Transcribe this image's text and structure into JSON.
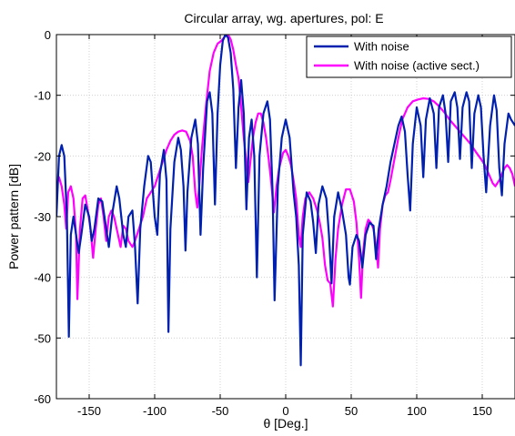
{
  "chart_data": {
    "type": "line",
    "title": "Circular array, wg. apertures, pol: E",
    "xlabel": "θ  [Deg.]",
    "ylabel": "Power pattern  [dB]",
    "xlim": [
      -175,
      175
    ],
    "ylim": [
      -60,
      0
    ],
    "xticks": [
      -150,
      -100,
      -50,
      0,
      50,
      100,
      150
    ],
    "yticks": [
      0,
      -10,
      -20,
      -30,
      -40,
      -50,
      -60
    ],
    "grid": true,
    "legend_position": "top-right",
    "series": [
      {
        "name": "With noise",
        "color": "#0020b0",
        "points": [
          [
            -175,
            -30
          ],
          [
            -173,
            -20
          ],
          [
            -171,
            -18.2
          ],
          [
            -169,
            -20
          ],
          [
            -167,
            -30
          ],
          [
            -165.5,
            -49.8
          ],
          [
            -164,
            -33
          ],
          [
            -162,
            -30
          ],
          [
            -160,
            -33
          ],
          [
            -158,
            -36
          ],
          [
            -156,
            -33
          ],
          [
            -153,
            -28
          ],
          [
            -150,
            -30
          ],
          [
            -148,
            -34
          ],
          [
            -146,
            -32
          ],
          [
            -143,
            -27
          ],
          [
            -140,
            -27.5
          ],
          [
            -137,
            -32
          ],
          [
            -135,
            -35
          ],
          [
            -132,
            -29
          ],
          [
            -129,
            -25
          ],
          [
            -127,
            -27
          ],
          [
            -124,
            -33
          ],
          [
            -122,
            -35
          ],
          [
            -120,
            -30
          ],
          [
            -117,
            -29
          ],
          [
            -115,
            -35
          ],
          [
            -113,
            -44.3
          ],
          [
            -111,
            -32
          ],
          [
            -108,
            -25
          ],
          [
            -105,
            -20
          ],
          [
            -103,
            -21
          ],
          [
            -100,
            -30
          ],
          [
            -98,
            -33
          ],
          [
            -96,
            -23
          ],
          [
            -93,
            -19
          ],
          [
            -91,
            -24
          ],
          [
            -89.5,
            -49
          ],
          [
            -88,
            -32
          ],
          [
            -85,
            -21
          ],
          [
            -82,
            -17
          ],
          [
            -80,
            -19
          ],
          [
            -78,
            -25
          ],
          [
            -76.5,
            -35.6
          ],
          [
            -75,
            -26
          ],
          [
            -72,
            -17
          ],
          [
            -69,
            -14
          ],
          [
            -67,
            -18
          ],
          [
            -65,
            -33
          ],
          [
            -63,
            -22
          ],
          [
            -60,
            -11
          ],
          [
            -58,
            -9.5
          ],
          [
            -56,
            -13
          ],
          [
            -54,
            -28
          ],
          [
            -52,
            -13
          ],
          [
            -50,
            -5
          ],
          [
            -48,
            -1
          ],
          [
            -46,
            0
          ],
          [
            -44,
            -0.5
          ],
          [
            -42,
            -3
          ],
          [
            -40,
            -9
          ],
          [
            -38,
            -22
          ],
          [
            -36,
            -12
          ],
          [
            -34,
            -7.5
          ],
          [
            -32,
            -13
          ],
          [
            -30,
            -28.8
          ],
          [
            -28,
            -17
          ],
          [
            -26,
            -14
          ],
          [
            -24,
            -20
          ],
          [
            -22,
            -40
          ],
          [
            -20,
            -20
          ],
          [
            -17,
            -13
          ],
          [
            -14,
            -11
          ],
          [
            -12,
            -14
          ],
          [
            -10,
            -26
          ],
          [
            -8.5,
            -43.8
          ],
          [
            -6,
            -25
          ],
          [
            -3,
            -17
          ],
          [
            0,
            -14
          ],
          [
            3,
            -17
          ],
          [
            6,
            -26
          ],
          [
            8,
            -30
          ],
          [
            10,
            -38
          ],
          [
            11.5,
            -54.5
          ],
          [
            13,
            -33
          ],
          [
            16,
            -26
          ],
          [
            19,
            -27.5
          ],
          [
            21,
            -31
          ],
          [
            23,
            -36
          ],
          [
            25,
            -28
          ],
          [
            28,
            -25
          ],
          [
            31,
            -27
          ],
          [
            33,
            -33
          ],
          [
            35,
            -41
          ],
          [
            37,
            -30
          ],
          [
            40,
            -26
          ],
          [
            43,
            -29
          ],
          [
            46,
            -33
          ],
          [
            48,
            -40
          ],
          [
            49,
            -41.2
          ],
          [
            51,
            -35
          ],
          [
            54,
            -33
          ],
          [
            56,
            -34
          ],
          [
            58.5,
            -38.4
          ],
          [
            61,
            -33
          ],
          [
            64,
            -31
          ],
          [
            67,
            -31.5
          ],
          [
            69,
            -37
          ],
          [
            71,
            -32
          ],
          [
            74,
            -28
          ],
          [
            77,
            -25
          ],
          [
            80,
            -21
          ],
          [
            83,
            -18
          ],
          [
            86,
            -15
          ],
          [
            88.5,
            -13.5
          ],
          [
            91,
            -16
          ],
          [
            93,
            -23
          ],
          [
            95,
            -29
          ],
          [
            97,
            -18
          ],
          [
            100,
            -12
          ],
          [
            103,
            -15
          ],
          [
            105,
            -23.5
          ],
          [
            107,
            -14
          ],
          [
            110,
            -10.5
          ],
          [
            113,
            -13
          ],
          [
            115,
            -22
          ],
          [
            117,
            -12
          ],
          [
            120,
            -10
          ],
          [
            122,
            -13
          ],
          [
            124,
            -21
          ],
          [
            126,
            -11
          ],
          [
            129,
            -9.5
          ],
          [
            131,
            -12
          ],
          [
            133,
            -20.5
          ],
          [
            135,
            -12
          ],
          [
            138,
            -9.5
          ],
          [
            140,
            -11
          ],
          [
            142,
            -22
          ],
          [
            144,
            -13
          ],
          [
            147,
            -10
          ],
          [
            149,
            -12
          ],
          [
            151,
            -20
          ],
          [
            153,
            -26
          ],
          [
            156,
            -15
          ],
          [
            159,
            -10
          ],
          [
            161,
            -12.5
          ],
          [
            163,
            -22
          ],
          [
            165,
            -26.5
          ],
          [
            167,
            -18
          ],
          [
            170,
            -13
          ],
          [
            172,
            -14
          ],
          [
            175,
            -15
          ]
        ]
      },
      {
        "name": "With noise (active sect.)",
        "color": "#ff00ff",
        "points": [
          [
            -175,
            -25
          ],
          [
            -173,
            -23.5
          ],
          [
            -171,
            -25
          ],
          [
            -169,
            -28
          ],
          [
            -167.5,
            -32
          ],
          [
            -166,
            -26
          ],
          [
            -164,
            -25
          ],
          [
            -162,
            -27
          ],
          [
            -160,
            -33
          ],
          [
            -159,
            -43.6
          ],
          [
            -157,
            -32
          ],
          [
            -155,
            -27
          ],
          [
            -153,
            -26.5
          ],
          [
            -151,
            -29
          ],
          [
            -149,
            -32
          ],
          [
            -147,
            -36.8
          ],
          [
            -145,
            -32
          ],
          [
            -143,
            -28
          ],
          [
            -141,
            -27
          ],
          [
            -139,
            -30
          ],
          [
            -137,
            -34
          ],
          [
            -135,
            -30
          ],
          [
            -133,
            -29
          ],
          [
            -131,
            -30
          ],
          [
            -128,
            -33
          ],
          [
            -126,
            -35
          ],
          [
            -124,
            -31.5
          ],
          [
            -122,
            -32
          ],
          [
            -120,
            -34
          ],
          [
            -117,
            -35
          ],
          [
            -115,
            -34
          ],
          [
            -112,
            -32
          ],
          [
            -109,
            -30
          ],
          [
            -106,
            -27
          ],
          [
            -103,
            -26
          ],
          [
            -100,
            -25
          ],
          [
            -97,
            -23
          ],
          [
            -94,
            -21
          ],
          [
            -91,
            -19
          ],
          [
            -88,
            -17.5
          ],
          [
            -85,
            -16.5
          ],
          [
            -82,
            -16
          ],
          [
            -79,
            -15.8
          ],
          [
            -76,
            -16
          ],
          [
            -73,
            -17.5
          ],
          [
            -71,
            -20
          ],
          [
            -69,
            -26
          ],
          [
            -67.5,
            -28.5
          ],
          [
            -66,
            -25
          ],
          [
            -64,
            -19
          ],
          [
            -61,
            -12
          ],
          [
            -58,
            -6
          ],
          [
            -55,
            -3
          ],
          [
            -52,
            -1.5
          ],
          [
            -49,
            -1
          ],
          [
            -46,
            -0.2
          ],
          [
            -44,
            0
          ],
          [
            -42,
            -0.8
          ],
          [
            -40,
            -2.5
          ],
          [
            -38,
            -5
          ],
          [
            -36,
            -7.2
          ],
          [
            -34,
            -12
          ],
          [
            -32,
            -17
          ],
          [
            -30,
            -21
          ],
          [
            -28.5,
            -24.3
          ],
          [
            -27,
            -21
          ],
          [
            -25,
            -17
          ],
          [
            -23,
            -14.5
          ],
          [
            -21,
            -13
          ],
          [
            -19,
            -13
          ],
          [
            -17,
            -14.5
          ],
          [
            -15,
            -17
          ],
          [
            -13,
            -20.5
          ],
          [
            -11,
            -24.5
          ],
          [
            -9,
            -29.3
          ],
          [
            -7,
            -25
          ],
          [
            -5,
            -22
          ],
          [
            -2,
            -19.5
          ],
          [
            0,
            -19
          ],
          [
            2,
            -20
          ],
          [
            4,
            -21.5
          ],
          [
            6,
            -24
          ],
          [
            8,
            -27
          ],
          [
            10,
            -33
          ],
          [
            11.5,
            -35
          ],
          [
            13,
            -30
          ],
          [
            15,
            -27
          ],
          [
            18,
            -26
          ],
          [
            21,
            -27
          ],
          [
            24,
            -29
          ],
          [
            26,
            -31
          ],
          [
            28,
            -33.5
          ],
          [
            30,
            -38
          ],
          [
            32,
            -40.5
          ],
          [
            34,
            -41
          ],
          [
            36,
            -44.8
          ],
          [
            38,
            -37
          ],
          [
            40,
            -32
          ],
          [
            43,
            -28
          ],
          [
            46,
            -25.5
          ],
          [
            49,
            -25.5
          ],
          [
            52,
            -27.5
          ],
          [
            54,
            -31
          ],
          [
            56,
            -37
          ],
          [
            57.5,
            -43.4
          ],
          [
            59,
            -36
          ],
          [
            61,
            -32
          ],
          [
            63,
            -30.5
          ],
          [
            65,
            -31
          ],
          [
            67,
            -32
          ],
          [
            69,
            -35
          ],
          [
            70.5,
            -38.4
          ],
          [
            72,
            -32
          ],
          [
            74,
            -28
          ],
          [
            76,
            -26.5
          ],
          [
            78,
            -26
          ],
          [
            80,
            -24
          ],
          [
            83,
            -20.5
          ],
          [
            86,
            -17
          ],
          [
            89,
            -14
          ],
          [
            93,
            -12
          ],
          [
            97,
            -11
          ],
          [
            101,
            -10.7
          ],
          [
            105,
            -10.5
          ],
          [
            109,
            -10.6
          ],
          [
            113,
            -11
          ],
          [
            117,
            -11.8
          ],
          [
            121,
            -12.8
          ],
          [
            125,
            -14
          ],
          [
            129,
            -15
          ],
          [
            133,
            -16
          ],
          [
            137,
            -17
          ],
          [
            141,
            -18
          ],
          [
            145,
            -19.3
          ],
          [
            149,
            -20.5
          ],
          [
            152,
            -21.5
          ],
          [
            155,
            -23
          ],
          [
            158,
            -24.5
          ],
          [
            160,
            -25
          ],
          [
            163,
            -24
          ],
          [
            165,
            -23
          ],
          [
            167,
            -22
          ],
          [
            169,
            -21.5
          ],
          [
            171,
            -22
          ],
          [
            173,
            -23
          ],
          [
            175,
            -25
          ]
        ]
      }
    ]
  }
}
